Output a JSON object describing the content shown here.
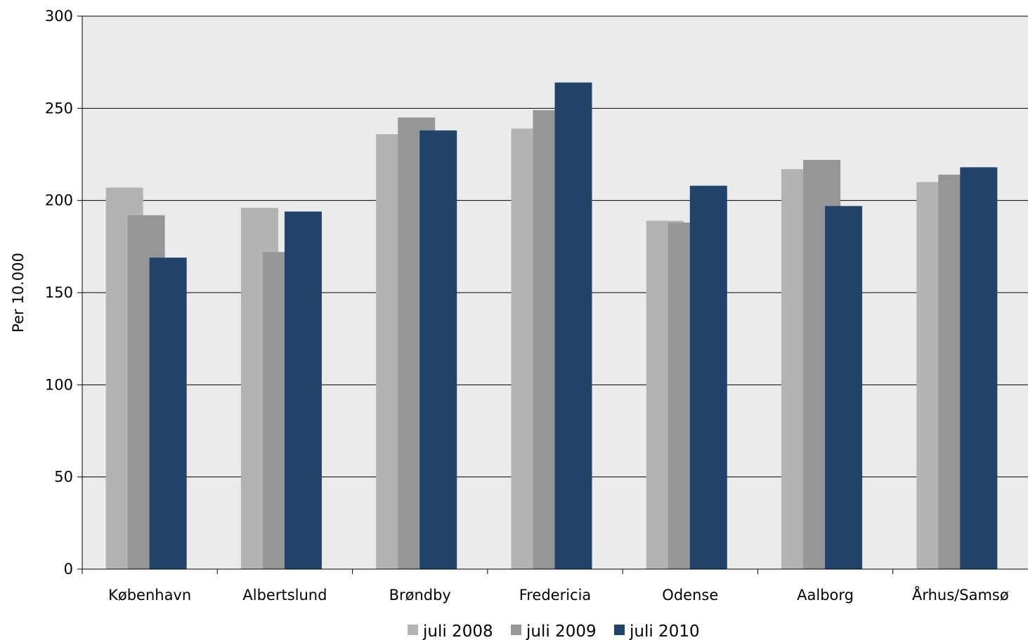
{
  "chart_data": {
    "type": "bar",
    "title": "",
    "xlabel": "",
    "ylabel": "Per 10.000",
    "ylim": [
      0,
      300
    ],
    "yticks": [
      0,
      50,
      100,
      150,
      200,
      250,
      300
    ],
    "grid": true,
    "legend": "bottom",
    "categories": [
      "København",
      "Albertslund",
      "Brøndby",
      "Fredericia",
      "Odense",
      "Aalborg",
      "Århus/Samsø"
    ],
    "series": [
      {
        "name": "juli 2008",
        "color": "#b3b3b3",
        "values": [
          207,
          196,
          236,
          239,
          189,
          217,
          210
        ]
      },
      {
        "name": "juli 2009",
        "color": "#969696",
        "values": [
          192,
          172,
          245,
          249,
          188,
          222,
          214
        ]
      },
      {
        "name": "juli 2010",
        "color": "#22436a",
        "values": [
          169,
          194,
          238,
          264,
          208,
          197,
          218
        ]
      }
    ]
  }
}
